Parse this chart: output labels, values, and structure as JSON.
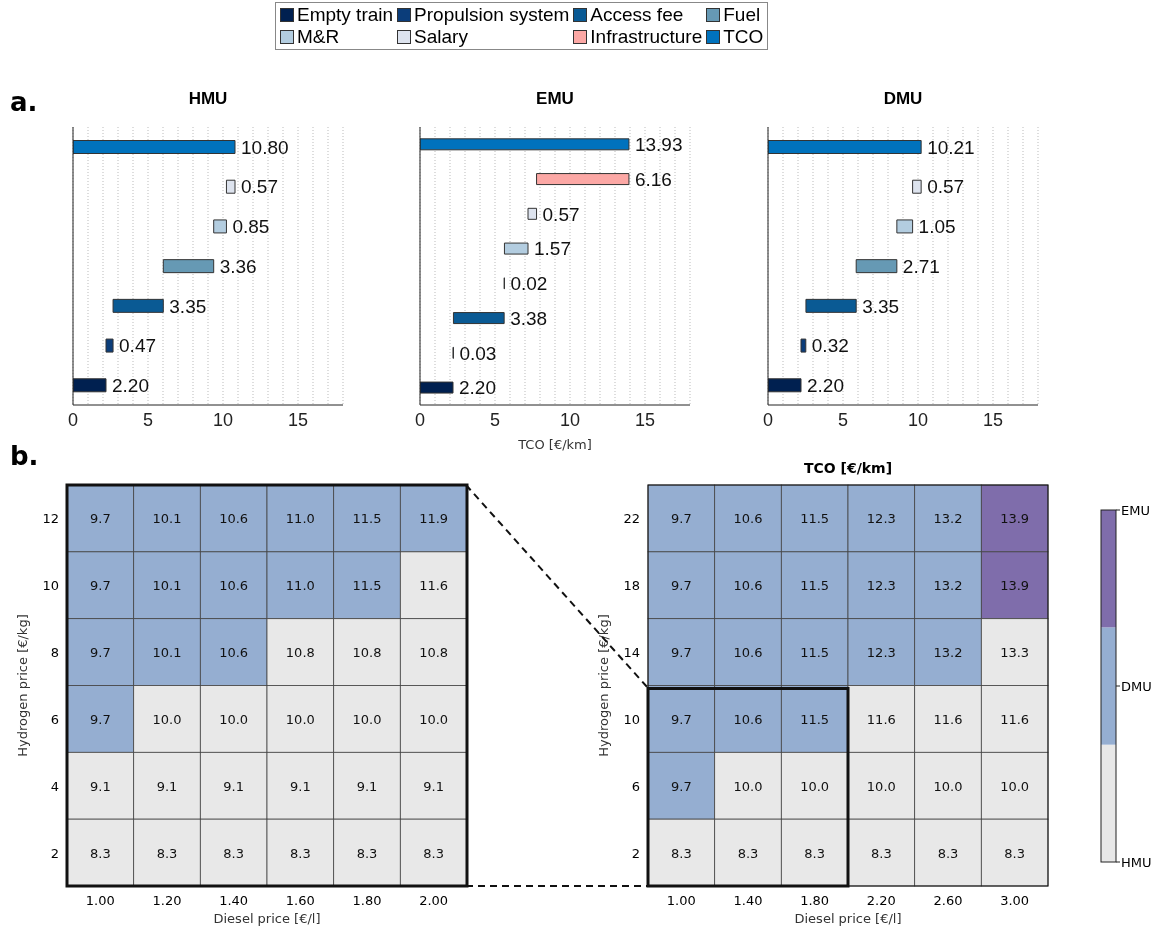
{
  "chart_data": [
    {
      "type": "bar",
      "orientation": "horizontal",
      "title": "HMU",
      "categories": [
        null,
        null,
        null,
        null,
        null,
        null,
        null
      ],
      "series": [
        {
          "name": "Empty train",
          "color": "#002050",
          "values": [
            null,
            null,
            null,
            null,
            null,
            null,
            2.2
          ],
          "base": [
            null,
            null,
            null,
            null,
            null,
            null,
            0
          ],
          "value_labels": [
            null,
            null,
            null,
            null,
            null,
            null,
            "2.20"
          ]
        },
        {
          "name": "Propulsion system",
          "color": "#0b3d7a",
          "values": [
            null,
            null,
            null,
            null,
            null,
            0.47,
            null
          ],
          "base": [
            null,
            null,
            null,
            null,
            null,
            2.2,
            null
          ],
          "value_labels": [
            null,
            null,
            null,
            null,
            null,
            "0.47",
            null
          ]
        },
        {
          "name": "Access fee",
          "color": "#0a5a94",
          "values": [
            null,
            null,
            null,
            null,
            3.35,
            null,
            null
          ],
          "base": [
            null,
            null,
            null,
            null,
            2.67,
            null,
            null
          ],
          "value_labels": [
            null,
            null,
            null,
            null,
            "3.35",
            null,
            null
          ]
        },
        {
          "name": "Fuel",
          "color": "#6699b4",
          "values": [
            null,
            null,
            null,
            3.36,
            null,
            null,
            null
          ],
          "base": [
            null,
            null,
            null,
            6.02,
            null,
            null,
            null
          ],
          "value_labels": [
            null,
            null,
            null,
            "3.36",
            null,
            null,
            null
          ]
        },
        {
          "name": "M&R",
          "color": "#b3cde0",
          "values": [
            null,
            null,
            0.85,
            null,
            null,
            null,
            null
          ],
          "base": [
            null,
            null,
            9.38,
            null,
            null,
            null,
            null
          ],
          "value_labels": [
            null,
            null,
            "0.85",
            null,
            null,
            null,
            null
          ]
        },
        {
          "name": "Salary",
          "color": "#dde3ee",
          "values": [
            null,
            0.57,
            null,
            null,
            null,
            null,
            null
          ],
          "base": [
            null,
            10.23,
            null,
            null,
            null,
            null,
            null
          ],
          "value_labels": [
            null,
            "0.57",
            null,
            null,
            null,
            null,
            null
          ]
        },
        {
          "name": "Infrastructure",
          "color": "#fca8a5",
          "values": [
            null,
            null,
            null,
            null,
            null,
            null,
            null
          ]
        },
        {
          "name": "TCO",
          "color": "#0072bd",
          "values": [
            10.8,
            null,
            null,
            null,
            null,
            null,
            null
          ],
          "base": [
            0,
            null,
            null,
            null,
            null,
            null,
            null
          ],
          "value_labels": [
            "10.80",
            null,
            null,
            null,
            null,
            null,
            null
          ]
        }
      ],
      "xlim": [
        0,
        18
      ],
      "xticks": [
        0,
        {
          "value": 1,
          "label": null
        },
        {
          "value": 2,
          "label": null
        },
        {
          "value": 3,
          "label": null
        },
        {
          "value": 4,
          "label": null
        },
        5,
        {
          "value": 6,
          "label": null
        },
        {
          "value": 7,
          "label": null
        },
        {
          "value": 8,
          "label": null
        },
        {
          "value": 9,
          "label": null
        },
        10,
        {
          "value": 11,
          "label": null
        },
        {
          "value": 12,
          "label": null
        },
        {
          "value": 13,
          "label": null
        },
        {
          "value": 14,
          "label": null
        },
        15,
        {
          "value": 16,
          "label": null
        },
        {
          "value": 17,
          "label": null
        },
        {
          "value": 18,
          "label": null
        }
      ],
      "grid": "x",
      "legend": "top",
      "tick_labels": "x",
      "annotations": [
        "a."
      ]
    },
    {
      "type": "bar",
      "orientation": "horizontal",
      "title": "EMU",
      "xlabel": "TCO [€/km]",
      "categories": [
        null,
        null,
        null,
        null,
        null,
        null,
        null,
        null
      ],
      "series": [
        {
          "color": "#002050",
          "values": [
            null,
            null,
            null,
            null,
            null,
            null,
            null,
            2.2
          ],
          "base": [
            null,
            null,
            null,
            null,
            null,
            null,
            null,
            0
          ],
          "value_labels": [
            null,
            null,
            null,
            null,
            null,
            null,
            null,
            "2.20"
          ]
        },
        {
          "color": "#0b3d7a",
          "values": [
            null,
            null,
            null,
            null,
            null,
            null,
            0.03,
            null
          ],
          "base": [
            null,
            null,
            null,
            null,
            null,
            null,
            2.2,
            null
          ],
          "value_labels": [
            null,
            null,
            null,
            null,
            null,
            null,
            "0.03",
            null
          ]
        },
        {
          "color": "#0a5a94",
          "values": [
            null,
            null,
            null,
            null,
            null,
            3.38,
            null,
            null
          ],
          "base": [
            null,
            null,
            null,
            null,
            null,
            2.23,
            null,
            null
          ],
          "value_labels": [
            null,
            null,
            null,
            null,
            null,
            "3.38",
            null,
            null
          ]
        },
        {
          "color": "#6699b4",
          "values": [
            null,
            null,
            null,
            null,
            0.02,
            null,
            null,
            null
          ],
          "base": [
            null,
            null,
            null,
            null,
            5.61,
            null,
            null,
            null
          ],
          "value_labels": [
            null,
            null,
            null,
            null,
            "0.02",
            null,
            null,
            null
          ]
        },
        {
          "color": "#b3cde0",
          "values": [
            null,
            null,
            null,
            1.57,
            null,
            null,
            null,
            null
          ],
          "base": [
            null,
            null,
            null,
            5.63,
            null,
            null,
            null,
            null
          ],
          "value_labels": [
            null,
            null,
            null,
            "1.57",
            null,
            null,
            null,
            null
          ]
        },
        {
          "color": "#dde3ee",
          "values": [
            null,
            null,
            0.57,
            null,
            null,
            null,
            null,
            null
          ],
          "base": [
            null,
            null,
            7.2,
            null,
            null,
            null,
            null,
            null
          ],
          "value_labels": [
            null,
            null,
            "0.57",
            null,
            null,
            null,
            null,
            null
          ]
        },
        {
          "color": "#fca8a5",
          "values": [
            null,
            6.16,
            null,
            null,
            null,
            null,
            null,
            null
          ],
          "base": [
            null,
            7.77,
            null,
            null,
            null,
            null,
            null,
            null
          ],
          "value_labels": [
            null,
            "6.16",
            null,
            null,
            null,
            null,
            null,
            null
          ]
        },
        {
          "color": "#0072bd",
          "values": [
            13.93,
            null,
            null,
            null,
            null,
            null,
            null,
            null
          ],
          "base": [
            0,
            null,
            null,
            null,
            null,
            null,
            null,
            null
          ],
          "value_labels": [
            "13.93",
            null,
            null,
            null,
            null,
            null,
            null,
            null
          ]
        }
      ],
      "xlim": [
        0,
        18
      ],
      "xticks": [
        0,
        {
          "value": 1,
          "label": null
        },
        {
          "value": 2,
          "label": null
        },
        {
          "value": 3,
          "label": null
        },
        {
          "value": 4,
          "label": null
        },
        5,
        {
          "value": 6,
          "label": null
        },
        {
          "value": 7,
          "label": null
        },
        {
          "value": 8,
          "label": null
        },
        {
          "value": 9,
          "label": null
        },
        10,
        {
          "value": 11,
          "label": null
        },
        {
          "value": 12,
          "label": null
        },
        {
          "value": 13,
          "label": null
        },
        {
          "value": 14,
          "label": null
        },
        15,
        {
          "value": 16,
          "label": null
        },
        {
          "value": 17,
          "label": null
        },
        {
          "value": 18,
          "label": null
        }
      ],
      "grid": "x",
      "tick_labels": "x"
    },
    {
      "type": "bar",
      "orientation": "horizontal",
      "title": "DMU",
      "categories": [
        null,
        null,
        null,
        null,
        null,
        null,
        null
      ],
      "series": [
        {
          "color": "#002050",
          "values": [
            null,
            null,
            null,
            null,
            null,
            null,
            2.2
          ],
          "base": [
            null,
            null,
            null,
            null,
            null,
            null,
            0
          ],
          "value_labels": [
            null,
            null,
            null,
            null,
            null,
            null,
            "2.20"
          ]
        },
        {
          "color": "#0b3d7a",
          "values": [
            null,
            null,
            null,
            null,
            null,
            0.32,
            null
          ],
          "base": [
            null,
            null,
            null,
            null,
            null,
            2.2,
            null
          ],
          "value_labels": [
            null,
            null,
            null,
            null,
            null,
            "0.32",
            null
          ]
        },
        {
          "color": "#0a5a94",
          "values": [
            null,
            null,
            null,
            null,
            3.35,
            null,
            null
          ],
          "base": [
            null,
            null,
            null,
            null,
            2.53,
            null,
            null
          ],
          "value_labels": [
            null,
            null,
            null,
            null,
            "3.35",
            null,
            null
          ]
        },
        {
          "color": "#6699b4",
          "values": [
            null,
            null,
            null,
            2.71,
            null,
            null,
            null
          ],
          "base": [
            null,
            null,
            null,
            5.88,
            null,
            null,
            null
          ],
          "value_labels": [
            null,
            null,
            null,
            "2.71",
            null,
            null,
            null
          ]
        },
        {
          "color": "#b3cde0",
          "values": [
            null,
            null,
            1.05,
            null,
            null,
            null,
            null
          ],
          "base": [
            null,
            null,
            8.59,
            null,
            null,
            null,
            null
          ],
          "value_labels": [
            null,
            null,
            "1.05",
            null,
            null,
            null,
            null
          ]
        },
        {
          "color": "#dde3ee",
          "values": [
            null,
            0.57,
            null,
            null,
            null,
            null,
            null
          ],
          "base": [
            null,
            9.64,
            null,
            null,
            null,
            null,
            null
          ],
          "value_labels": [
            null,
            "0.57",
            null,
            null,
            null,
            null,
            null
          ]
        },
        {
          "color": "#0072bd",
          "values": [
            10.21,
            null,
            null,
            null,
            null,
            null,
            null
          ],
          "base": [
            0,
            null,
            null,
            null,
            null,
            null,
            null
          ],
          "value_labels": [
            "10.21",
            null,
            null,
            null,
            null,
            null,
            null
          ]
        }
      ],
      "xlim": [
        0,
        18
      ],
      "xticks": [
        0,
        {
          "value": 1,
          "label": null
        },
        {
          "value": 2,
          "label": null
        },
        {
          "value": 3,
          "label": null
        },
        {
          "value": 4,
          "label": null
        },
        5,
        {
          "value": 6,
          "label": null
        },
        {
          "value": 7,
          "label": null
        },
        {
          "value": 8,
          "label": null
        },
        {
          "value": 9,
          "label": null
        },
        10,
        {
          "value": 11,
          "label": null
        },
        {
          "value": 12,
          "label": null
        },
        {
          "value": 13,
          "label": null
        },
        {
          "value": 14,
          "label": null
        },
        15,
        {
          "value": 16,
          "label": null
        },
        {
          "value": 17,
          "label": null
        },
        {
          "value": 18,
          "label": null
        }
      ],
      "grid": "x",
      "tick_labels": "x"
    },
    {
      "type": "heatmap",
      "xlabel": "Diesel price [€/l]",
      "ylabel": "Hydrogen price [€/kg]",
      "annotations": [
        "b."
      ],
      "categories": [
        "1.00",
        "1.20",
        "1.40",
        "1.60",
        "1.80",
        "2.00"
      ],
      "y_categories": [
        "12",
        "10",
        "8",
        "6",
        "4",
        "2"
      ],
      "cells": [
        [
          9.7,
          10.1,
          10.6,
          11.0,
          11.5,
          11.9
        ],
        [
          9.7,
          10.1,
          10.6,
          11.0,
          11.5,
          11.6
        ],
        [
          9.7,
          10.1,
          10.6,
          10.8,
          10.8,
          10.8
        ],
        [
          9.7,
          10.0,
          10.0,
          10.0,
          10.0,
          10.0
        ],
        [
          9.1,
          9.1,
          9.1,
          9.1,
          9.1,
          9.1
        ],
        [
          8.3,
          8.3,
          8.3,
          8.3,
          8.3,
          8.3
        ]
      ],
      "cell_labels": [
        [
          "9.7",
          "10.1",
          "10.6",
          "11.0",
          "11.5",
          "11.9"
        ],
        [
          "9.7",
          "10.1",
          "10.6",
          "11.0",
          "11.5",
          "11.6"
        ],
        [
          "9.7",
          "10.1",
          "10.6",
          "10.8",
          "10.8",
          "10.8"
        ],
        [
          "9.7",
          "10.0",
          "10.0",
          "10.0",
          "10.0",
          "10.0"
        ],
        [
          "9.1",
          "9.1",
          "9.1",
          "9.1",
          "9.1",
          "9.1"
        ],
        [
          "8.3",
          "8.3",
          "8.3",
          "8.3",
          "8.3",
          "8.3"
        ]
      ],
      "colors": [
        [
          "#95aed1",
          "#95aed1",
          "#95aed1",
          "#95aed1",
          "#95aed1",
          "#95aed1"
        ],
        [
          "#95aed1",
          "#95aed1",
          "#95aed1",
          "#95aed1",
          "#95aed1",
          "#e8e8e8"
        ],
        [
          "#95aed1",
          "#95aed1",
          "#95aed1",
          "#e8e8e8",
          "#e8e8e8",
          "#e8e8e8"
        ],
        [
          "#95aed1",
          "#e8e8e8",
          "#e8e8e8",
          "#e8e8e8",
          "#e8e8e8",
          "#e8e8e8"
        ],
        [
          "#e8e8e8",
          "#e8e8e8",
          "#e8e8e8",
          "#e8e8e8",
          "#e8e8e8",
          "#e8e8e8"
        ],
        [
          "#e8e8e8",
          "#e8e8e8",
          "#e8e8e8",
          "#e8e8e8",
          "#e8e8e8",
          "#e8e8e8"
        ]
      ]
    },
    {
      "type": "heatmap",
      "title": "TCO [€/km]",
      "xlabel": "Diesel price [€/l]",
      "ylabel": "Hydrogen price [€/kg]",
      "categories": [
        "1.00",
        "1.40",
        "1.80",
        "2.20",
        "2.60",
        "3.00"
      ],
      "y_categories": [
        "22",
        "18",
        "14",
        "10",
        "6",
        "2"
      ],
      "cells": [
        [
          9.7,
          10.6,
          11.5,
          12.3,
          13.2,
          13.9
        ],
        [
          9.7,
          10.6,
          11.5,
          12.3,
          13.2,
          13.9
        ],
        [
          9.7,
          10.6,
          11.5,
          12.3,
          13.2,
          13.3
        ],
        [
          9.7,
          10.6,
          11.5,
          11.6,
          11.6,
          11.6
        ],
        [
          9.7,
          10.0,
          10.0,
          10.0,
          10.0,
          10.0
        ],
        [
          8.3,
          8.3,
          8.3,
          8.3,
          8.3,
          8.3
        ]
      ],
      "cell_labels": [
        [
          "9.7",
          "10.6",
          "11.5",
          "12.3",
          "13.2",
          "13.9"
        ],
        [
          "9.7",
          "10.6",
          "11.5",
          "12.3",
          "13.2",
          "13.9"
        ],
        [
          "9.7",
          "10.6",
          "11.5",
          "12.3",
          "13.2",
          "13.3"
        ],
        [
          "9.7",
          "10.6",
          "11.5",
          "11.6",
          "11.6",
          "11.6"
        ],
        [
          "9.7",
          "10.0",
          "10.0",
          "10.0",
          "10.0",
          "10.0"
        ],
        [
          "8.3",
          "8.3",
          "8.3",
          "8.3",
          "8.3",
          "8.3"
        ]
      ],
      "colors": [
        [
          "#95aed1",
          "#95aed1",
          "#95aed1",
          "#95aed1",
          "#95aed1",
          "#7f6dab"
        ],
        [
          "#95aed1",
          "#95aed1",
          "#95aed1",
          "#95aed1",
          "#95aed1",
          "#7f6dab"
        ],
        [
          "#95aed1",
          "#95aed1",
          "#95aed1",
          "#95aed1",
          "#95aed1",
          "#e8e8e8"
        ],
        [
          "#95aed1",
          "#95aed1",
          "#95aed1",
          "#e8e8e8",
          "#e8e8e8",
          "#e8e8e8"
        ],
        [
          "#95aed1",
          "#e8e8e8",
          "#e8e8e8",
          "#e8e8e8",
          "#e8e8e8",
          "#e8e8e8"
        ],
        [
          "#e8e8e8",
          "#e8e8e8",
          "#e8e8e8",
          "#e8e8e8",
          "#e8e8e8",
          "#e8e8e8"
        ]
      ]
    },
    {
      "type": "other",
      "categories": [
        "HMU",
        "DMU",
        "EMU"
      ],
      "colors": [
        "#e8e8e8",
        "#95aed1",
        "#7f6dab"
      ]
    }
  ]
}
